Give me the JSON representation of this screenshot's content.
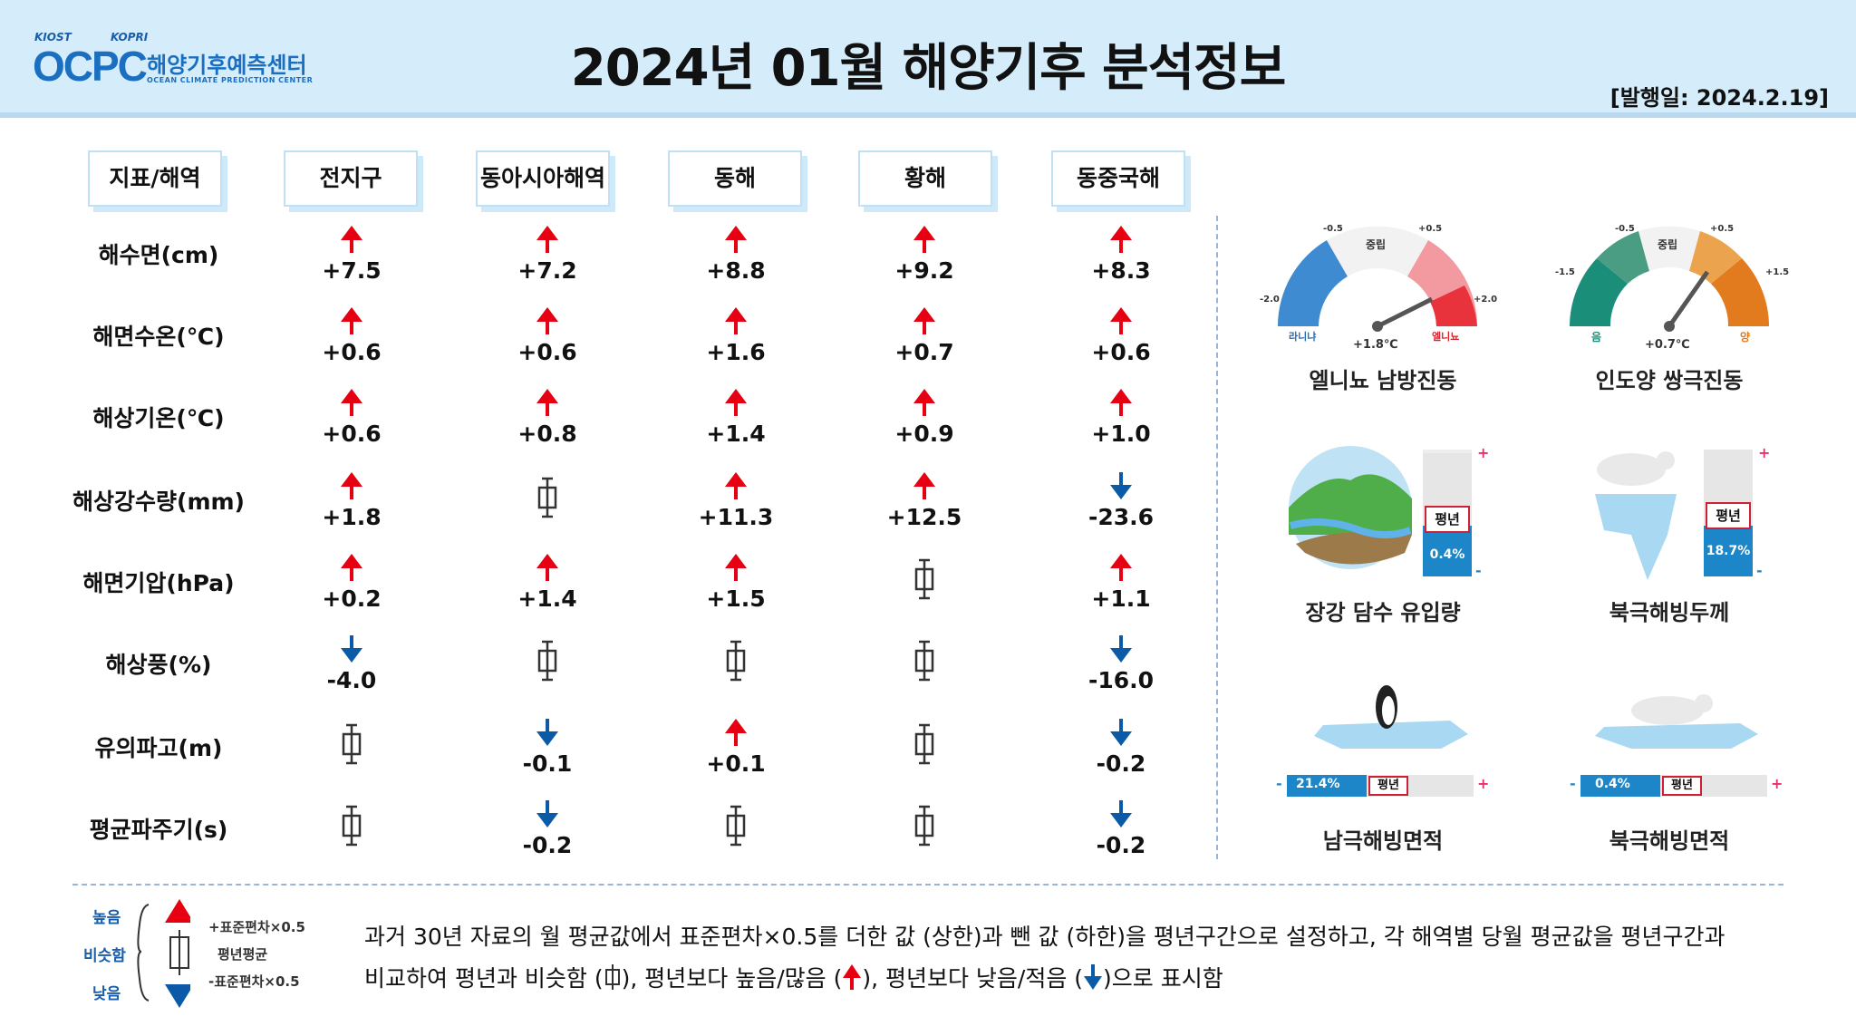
{
  "header": {
    "logo_org1": "KIOST",
    "logo_org2": "KOPRI",
    "logo_mark": "OCPC",
    "logo_kr": "해양기후예측센터",
    "logo_en": "OCEAN CLIMATE PREDICTION CENTER",
    "title": "2024년 01월 해양기후 분석정보",
    "issued": "[발행일: 2024.2.19]"
  },
  "table": {
    "corner": "지표/해역",
    "columns": [
      "전지구",
      "동아시아해역",
      "동해",
      "황해",
      "동중국해"
    ],
    "rows": [
      {
        "label": "해수면(cm)",
        "cells": [
          {
            "dir": "up",
            "value": "+7.5"
          },
          {
            "dir": "up",
            "value": "+7.2"
          },
          {
            "dir": "up",
            "value": "+8.8"
          },
          {
            "dir": "up",
            "value": "+9.2"
          },
          {
            "dir": "up",
            "value": "+8.3"
          }
        ]
      },
      {
        "label": "해면수온(℃)",
        "cells": [
          {
            "dir": "up",
            "value": "+0.6"
          },
          {
            "dir": "up",
            "value": "+0.6"
          },
          {
            "dir": "up",
            "value": "+1.6"
          },
          {
            "dir": "up",
            "value": "+0.7"
          },
          {
            "dir": "up",
            "value": "+0.6"
          }
        ]
      },
      {
        "label": "해상기온(℃)",
        "cells": [
          {
            "dir": "up",
            "value": "+0.6"
          },
          {
            "dir": "up",
            "value": "+0.8"
          },
          {
            "dir": "up",
            "value": "+1.4"
          },
          {
            "dir": "up",
            "value": "+0.9"
          },
          {
            "dir": "up",
            "value": "+1.0"
          }
        ]
      },
      {
        "label": "해상강수량(mm)",
        "cells": [
          {
            "dir": "up",
            "value": "+1.8"
          },
          {
            "dir": "normal",
            "value": ""
          },
          {
            "dir": "up",
            "value": "+11.3"
          },
          {
            "dir": "up",
            "value": "+12.5"
          },
          {
            "dir": "down",
            "value": "-23.6"
          }
        ]
      },
      {
        "label": "해면기압(hPa)",
        "cells": [
          {
            "dir": "up",
            "value": "+0.2"
          },
          {
            "dir": "up",
            "value": "+1.4"
          },
          {
            "dir": "up",
            "value": "+1.5"
          },
          {
            "dir": "normal",
            "value": ""
          },
          {
            "dir": "up",
            "value": "+1.1"
          }
        ]
      },
      {
        "label": "해상풍(%)",
        "cells": [
          {
            "dir": "down",
            "value": "-4.0"
          },
          {
            "dir": "normal",
            "value": ""
          },
          {
            "dir": "normal",
            "value": ""
          },
          {
            "dir": "normal",
            "value": ""
          },
          {
            "dir": "down",
            "value": "-16.0"
          }
        ]
      },
      {
        "label": "유의파고(m)",
        "cells": [
          {
            "dir": "normal",
            "value": ""
          },
          {
            "dir": "down",
            "value": "-0.1"
          },
          {
            "dir": "up",
            "value": "+0.1"
          },
          {
            "dir": "normal",
            "value": ""
          },
          {
            "dir": "down",
            "value": "-0.2"
          }
        ]
      },
      {
        "label": "평균파주기(s)",
        "cells": [
          {
            "dir": "normal",
            "value": ""
          },
          {
            "dir": "down",
            "value": "-0.2"
          },
          {
            "dir": "normal",
            "value": ""
          },
          {
            "dir": "normal",
            "value": ""
          },
          {
            "dir": "down",
            "value": "-0.2"
          }
        ]
      }
    ]
  },
  "colors": {
    "up": "#e60012",
    "down": "#0b5aa8",
    "header_bg": "#d5ecfb"
  },
  "indicators": {
    "enso": {
      "title": "엘니뇨 남방진동",
      "value": "+1.8℃",
      "neutral": "중립",
      "left": "라니냐",
      "right": "엘니뇨",
      "t1": "-2.0",
      "t2": "-0.5",
      "t3": "+0.5",
      "t4": "+2.0",
      "level": 1.8
    },
    "iod": {
      "title": "인도양 쌍극진동",
      "value": "+0.7℃",
      "neutral": "중립",
      "left": "음",
      "right": "양",
      "t1": "-1.5",
      "t2": "-0.5",
      "t3": "+0.5",
      "t4": "+1.5",
      "level": 0.7
    },
    "yangtze": {
      "title": "장강 담수 유입량",
      "avg": "평년",
      "value": "0.4%"
    },
    "arctic_thickness": {
      "title": "북극해빙두께",
      "avg": "평년",
      "value": "18.7%"
    },
    "antarctic_area": {
      "title": "남극해빙면적",
      "avg": "평년",
      "value": "21.4%"
    },
    "arctic_area": {
      "title": "북극해빙면적",
      "avg": "평년",
      "value": "0.4%"
    },
    "plus": "+",
    "minus": "-"
  },
  "legend": {
    "high": "높음",
    "similar": "비슷함",
    "low": "낮음",
    "plus_sd": "+표준편차×0.5",
    "mean": "평년평균",
    "minus_sd": "-표준편차×0.5",
    "note_line1": "과거 30년 자료의 월 평균값에서 표준편차×0.5를 더한 값 (상한)과 뺀 값 (하한)을 평년구간으로 설정하고, 각 해역별 당월 평균값을 평년구간과",
    "note_line2a": "비교하여 평년과 비슷함 (",
    "note_line2b": "), 평년보다 높음/많음 (",
    "note_line2c": "), 평년보다 낮음/적음 (",
    "note_line2d": ")으로 표시함"
  }
}
